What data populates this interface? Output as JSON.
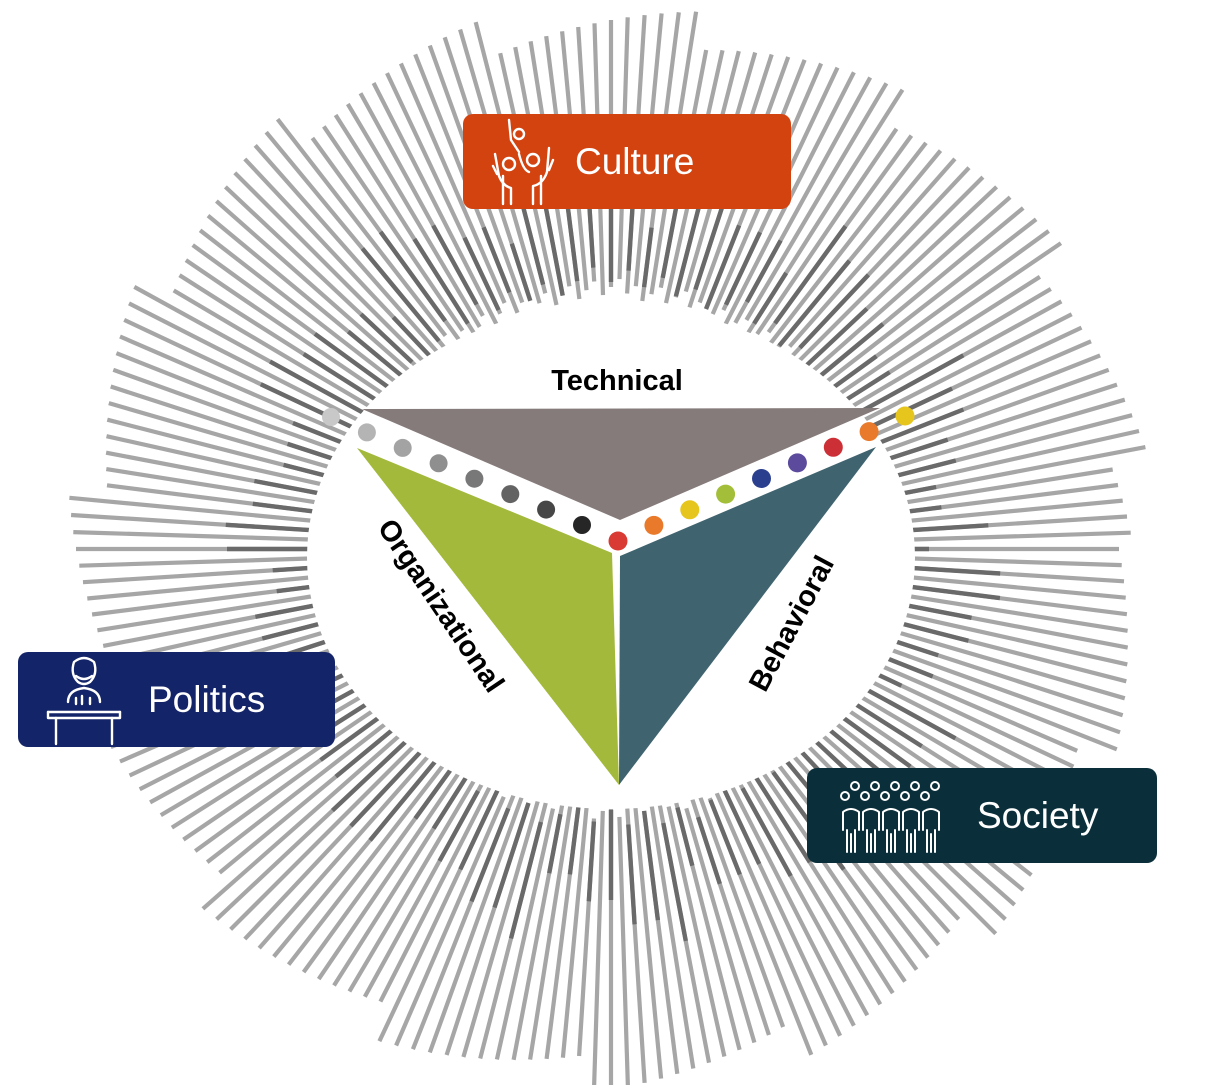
{
  "labels": {
    "technical": "Technical",
    "organizational": "Organizational",
    "behavioral": "Behavioral"
  },
  "tags": {
    "culture": "Culture",
    "politics": "Politics",
    "society": "Society"
  },
  "colors": {
    "culture_bg": "#d24310",
    "politics_bg": "#142468",
    "society_bg": "#0b2f3a",
    "technical_face": "#867b7b",
    "organizational_face": "#a3b93b",
    "behavioral_face": "#40646f",
    "ray_light": "#a6a6a6",
    "ray_dark": "#6a6a6a"
  },
  "icons": {
    "culture": "raised-hands-people-icon",
    "politics": "speaker-at-podium-icon",
    "society": "crowd-of-people-icon"
  },
  "dots": {
    "left_edge_colors": [
      "#c8c8c8",
      "#b4b4b4",
      "#a3a3a3",
      "#8f8f8f",
      "#787878",
      "#636363",
      "#474747",
      "#262626"
    ],
    "right_edge_colors": [
      "#d93a34",
      "#e97a2b",
      "#e6c51c",
      "#a3bf3a",
      "#2b3f8f",
      "#5c4a9d",
      "#cc2f35",
      "#e97a2b",
      "#e6c51c"
    ]
  }
}
